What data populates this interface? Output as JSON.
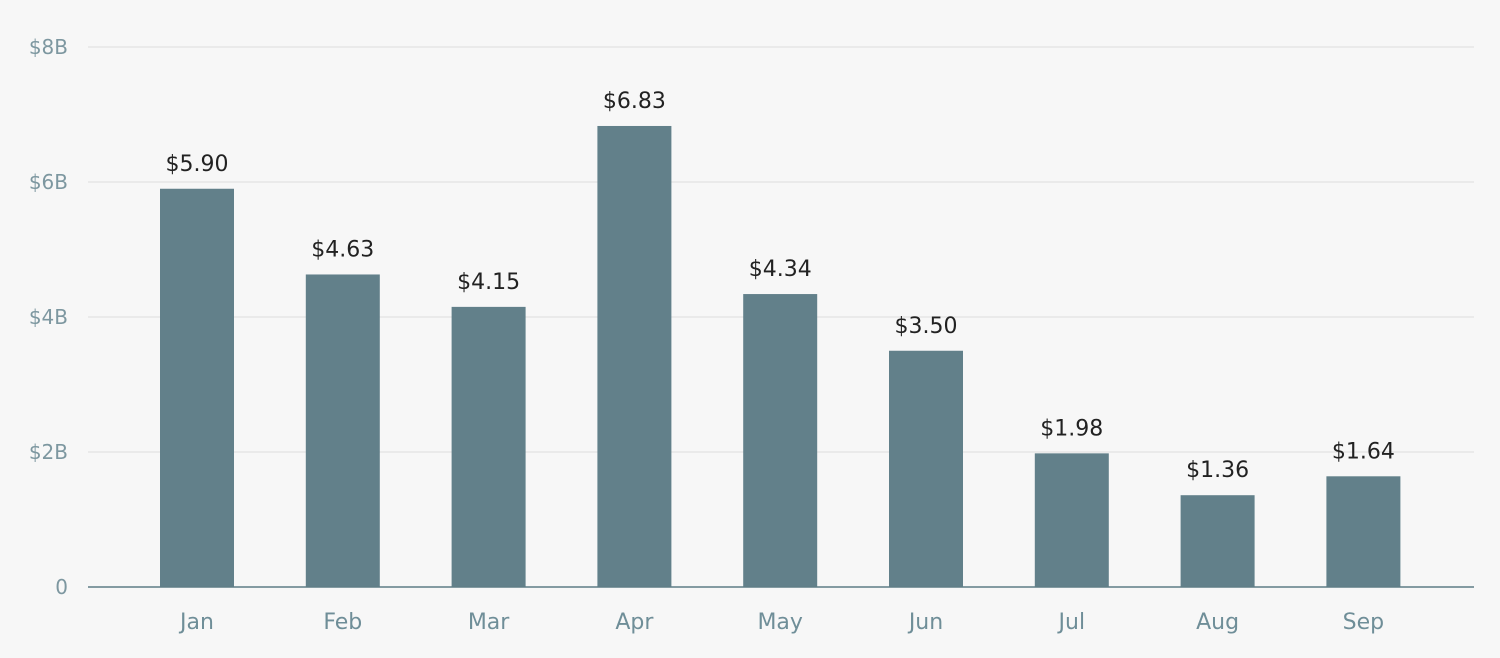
{
  "chart_data": {
    "type": "bar",
    "title": "",
    "xlabel": "",
    "ylabel": "",
    "categories": [
      "Jan",
      "Feb",
      "Mar",
      "Apr",
      "May",
      "Jun",
      "Jul",
      "Aug",
      "Sep"
    ],
    "values": [
      5.9,
      4.63,
      4.15,
      6.83,
      4.34,
      3.5,
      1.98,
      1.36,
      1.64
    ],
    "data_labels": [
      "$5.90",
      "$4.63",
      "$4.15",
      "$6.83",
      "$4.34",
      "$3.50",
      "$1.98",
      "$1.36",
      "$1.64"
    ],
    "ylim": [
      0,
      8
    ],
    "y_ticks": [
      {
        "value": 0,
        "label": "0"
      },
      {
        "value": 2,
        "label": "$2B"
      },
      {
        "value": 4,
        "label": "$4B"
      },
      {
        "value": 6,
        "label": "$6B"
      },
      {
        "value": 8,
        "label": "$8B"
      }
    ],
    "grid": true,
    "bar_color": "#62808a",
    "background_color": "#f7f7f7",
    "gridline_color": "#dedede",
    "axis_color": "#5f7d86",
    "tick_label_color": "#6f8e98",
    "data_label_color": "#222222"
  }
}
